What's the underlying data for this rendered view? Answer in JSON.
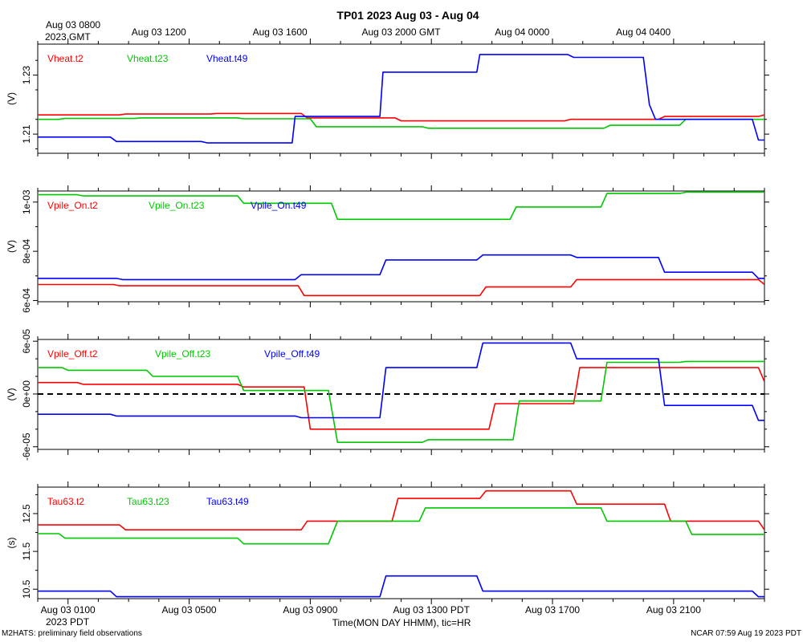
{
  "title": "TP01 2023 Aug 03 - Aug 04",
  "top_axis": {
    "first_label_line1": "Aug 03 0800",
    "first_label_line2": "2023 GMT",
    "ticks": [
      {
        "hour": 4,
        "label": "Aug 03 1200"
      },
      {
        "hour": 8,
        "label": "Aug 03 1600"
      },
      {
        "hour": 12,
        "label": "Aug 03 2000 GMT"
      },
      {
        "hour": 16,
        "label": "Aug 04 0000"
      },
      {
        "hour": 20,
        "label": "Aug 04 0400"
      }
    ]
  },
  "bottom_axis": {
    "ticks": [
      {
        "hour": 1,
        "label": "Aug 03 0100"
      },
      {
        "hour": 5,
        "label": "Aug 03 0500"
      },
      {
        "hour": 9,
        "label": "Aug 03 0900"
      },
      {
        "hour": 13,
        "label": "Aug 03 1300 PDT"
      },
      {
        "hour": 17,
        "label": "Aug 03 1700"
      },
      {
        "hour": 21,
        "label": "Aug 03 2100"
      }
    ],
    "year_label": "2023 PDT",
    "xlabel": "Time(MON DAY HHMM), tic=HR"
  },
  "footer": {
    "left": "M2HATS: preliminary field observations",
    "right": "NCAR 07:59 Aug 19 2023 PDT"
  },
  "colors": {
    "t2": "#ff0000",
    "t23": "#00c800",
    "t49": "#0000ff",
    "axis": "#000000"
  },
  "chart_data": [
    {
      "type": "line",
      "ylabel": "(V)",
      "ylim": [
        1.2035,
        1.2405
      ],
      "x_range_hours": [
        0,
        24
      ],
      "ytick_labels": [
        {
          "v": 1.21,
          "label": "1.21"
        },
        {
          "v": 1.23,
          "label": "1.23"
        }
      ],
      "minor_yticks": [
        1.205,
        1.215,
        1.225,
        1.235
      ],
      "zero_line": false,
      "series": [
        {
          "name": "Vheat.t2",
          "color": "#ff0000",
          "x": [
            0,
            2.7,
            2.9,
            5.7,
            5.9,
            8.7,
            8.9,
            11.8,
            12.0,
            17.4,
            17.6,
            20.5,
            20.7,
            23.8,
            24
          ],
          "y": [
            1.2165,
            1.2165,
            1.2168,
            1.2168,
            1.217,
            1.217,
            1.2155,
            1.2155,
            1.2145,
            1.2145,
            1.215,
            1.215,
            1.216,
            1.216,
            1.2165
          ]
        },
        {
          "name": "Vheat.t23",
          "color": "#00c800",
          "x": [
            0,
            0.7,
            0.9,
            3.2,
            3.4,
            6.6,
            6.8,
            9.0,
            9.2,
            12.7,
            12.9,
            18.7,
            18.9,
            21.2,
            21.4,
            24
          ],
          "y": [
            1.215,
            1.215,
            1.2153,
            1.2153,
            1.2155,
            1.2155,
            1.2152,
            1.2152,
            1.2125,
            1.2125,
            1.212,
            1.212,
            1.213,
            1.213,
            1.215,
            1.215
          ]
        },
        {
          "name": "Vheat.t49",
          "color": "#0000ff",
          "x": [
            0,
            2.4,
            2.6,
            5.4,
            5.6,
            8.4,
            8.5,
            11.3,
            11.4,
            14.5,
            14.6,
            17.5,
            17.7,
            20.0,
            20.2,
            20.4,
            23.6,
            23.8,
            24
          ],
          "y": [
            1.209,
            1.209,
            1.2075,
            1.2075,
            1.207,
            1.207,
            1.216,
            1.216,
            1.231,
            1.231,
            1.237,
            1.237,
            1.236,
            1.236,
            1.22,
            1.215,
            1.215,
            1.208,
            1.208
          ]
        }
      ]
    },
    {
      "type": "line",
      "ylabel": "(V)",
      "ylim": [
        0.000595,
        0.001045
      ],
      "x_range_hours": [
        0,
        24
      ],
      "ytick_labels": [
        {
          "v": 0.0006,
          "label": "6e-04"
        },
        {
          "v": 0.0008,
          "label": "8e-04"
        },
        {
          "v": 0.001,
          "label": "1e-03"
        }
      ],
      "minor_yticks": [
        0.0007,
        0.0009
      ],
      "zero_line": false,
      "series": [
        {
          "name": "Vpile_On.t2",
          "color": "#ff0000",
          "x": [
            0,
            2.5,
            2.7,
            8.6,
            8.8,
            14.6,
            14.8,
            17.6,
            17.8,
            23.8,
            24
          ],
          "y": [
            0.000665,
            0.000665,
            0.00066,
            0.00066,
            0.00062,
            0.00062,
            0.000655,
            0.000655,
            0.000685,
            0.000685,
            0.000665
          ]
        },
        {
          "name": "Vpile_On.t23",
          "color": "#00c800",
          "x": [
            0,
            1.3,
            1.5,
            6.6,
            6.8,
            9.7,
            9.9,
            15.6,
            15.8,
            18.6,
            18.8,
            21.2,
            21.4,
            24
          ],
          "y": [
            0.00103,
            0.00103,
            0.001025,
            0.001025,
            0.000995,
            0.000995,
            0.00093,
            0.00093,
            0.00098,
            0.00098,
            0.001035,
            0.001035,
            0.00104,
            0.00104
          ]
        },
        {
          "name": "Vpile_On.t49",
          "color": "#0000ff",
          "x": [
            0,
            2.6,
            2.8,
            8.5,
            8.7,
            11.3,
            11.5,
            14.5,
            14.7,
            17.6,
            17.8,
            20.5,
            20.7,
            23.6,
            23.8,
            24
          ],
          "y": [
            0.00069,
            0.00069,
            0.000685,
            0.000685,
            0.000705,
            0.000705,
            0.000765,
            0.000765,
            0.000785,
            0.000785,
            0.000775,
            0.000775,
            0.000715,
            0.000715,
            0.00069,
            0.00069
          ]
        }
      ]
    },
    {
      "type": "line",
      "ylabel": "(V)",
      "ylim": [
        -6.3e-05,
        6.2e-05
      ],
      "x_range_hours": [
        0,
        24
      ],
      "ytick_labels": [
        {
          "v": -6e-05,
          "label": "-6e-05"
        },
        {
          "v": 0,
          "label": "0e+00"
        },
        {
          "v": 6e-05,
          "label": "6e-05"
        }
      ],
      "minor_yticks": [
        -4e-05,
        -2e-05,
        2e-05,
        4e-05
      ],
      "zero_line": true,
      "series": [
        {
          "name": "Vpile_Off.t2",
          "color": "#ff0000",
          "x": [
            0,
            1.3,
            1.5,
            6.6,
            6.8,
            8.8,
            9.0,
            14.9,
            15.1,
            17.7,
            17.9,
            23.8,
            24
          ],
          "y": [
            1.3e-05,
            1.3e-05,
            1.1e-05,
            1.1e-05,
            8e-06,
            8e-06,
            -4e-05,
            -4e-05,
            -1.1e-05,
            -1.1e-05,
            3e-05,
            3e-05,
            1.4e-05
          ]
        },
        {
          "name": "Vpile_Off.t23",
          "color": "#00c800",
          "x": [
            0,
            0.8,
            1.0,
            3.6,
            3.8,
            6.6,
            6.8,
            9.6,
            9.9,
            12.7,
            12.9,
            15.7,
            15.9,
            18.6,
            18.8,
            21.2,
            21.4,
            24
          ],
          "y": [
            3e-05,
            3e-05,
            2.7e-05,
            2.7e-05,
            2e-05,
            2e-05,
            4e-06,
            4e-06,
            -5.5e-05,
            -5.5e-05,
            -5.2e-05,
            -5.2e-05,
            -8e-06,
            -8e-06,
            3.6e-05,
            3.6e-05,
            3.7e-05,
            3.7e-05
          ]
        },
        {
          "name": "Vpile_Off.t49",
          "color": "#0000ff",
          "x": [
            0,
            2.4,
            2.6,
            8.5,
            8.7,
            11.3,
            11.5,
            14.5,
            14.7,
            17.6,
            17.8,
            20.5,
            20.7,
            23.6,
            23.8,
            24
          ],
          "y": [
            -2.3e-05,
            -2.3e-05,
            -2.5e-05,
            -2.5e-05,
            -2.7e-05,
            -2.7e-05,
            3e-05,
            3e-05,
            5.8e-05,
            5.8e-05,
            4e-05,
            4e-05,
            -1.3e-05,
            -1.3e-05,
            -3e-05,
            -3e-05
          ]
        }
      ]
    },
    {
      "type": "line",
      "ylabel": "(s)",
      "ylim": [
        10.25,
        13.2
      ],
      "x_range_hours": [
        0,
        24
      ],
      "ytick_labels": [
        {
          "v": 10.5,
          "label": "10.5"
        },
        {
          "v": 11.5,
          "label": "11.5"
        },
        {
          "v": 12.5,
          "label": "12.5"
        }
      ],
      "minor_yticks": [
        11.0,
        12.0,
        13.0
      ],
      "zero_line": false,
      "series": [
        {
          "name": "Tau63.t2",
          "color": "#ff0000",
          "x": [
            0,
            2.7,
            2.9,
            8.7,
            8.9,
            11.7,
            11.9,
            14.6,
            14.8,
            17.6,
            17.8,
            20.7,
            20.9,
            23.8,
            24
          ],
          "y": [
            12.2,
            12.2,
            12.07,
            12.07,
            12.3,
            12.3,
            12.9,
            12.9,
            13.1,
            13.1,
            12.75,
            12.75,
            12.3,
            12.3,
            12.07
          ]
        },
        {
          "name": "Tau63.t23",
          "color": "#00c800",
          "x": [
            0,
            0.7,
            0.9,
            6.6,
            6.8,
            9.6,
            9.9,
            12.6,
            12.8,
            18.6,
            18.8,
            21.4,
            21.6,
            24
          ],
          "y": [
            11.97,
            11.97,
            11.85,
            11.85,
            11.7,
            11.7,
            12.3,
            12.3,
            12.65,
            12.65,
            12.3,
            12.3,
            11.95,
            11.95
          ]
        },
        {
          "name": "Tau63.t49",
          "color": "#0000ff",
          "x": [
            0,
            2.4,
            2.6,
            11.3,
            11.5,
            14.5,
            14.7,
            23.6,
            23.8,
            24
          ],
          "y": [
            10.45,
            10.45,
            10.3,
            10.3,
            10.85,
            10.85,
            10.45,
            10.45,
            10.3,
            10.3
          ]
        }
      ]
    }
  ]
}
